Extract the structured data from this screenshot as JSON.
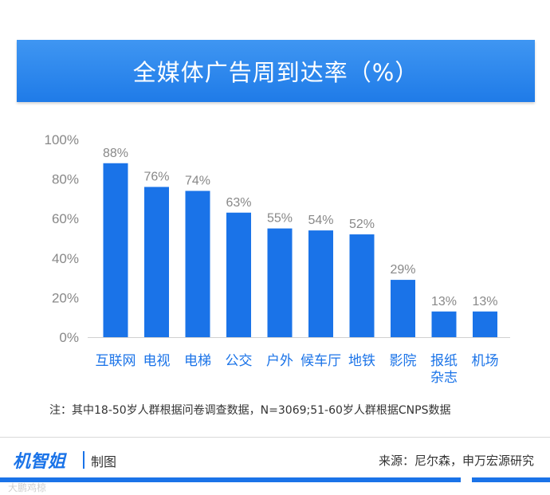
{
  "chart_data": {
    "type": "bar",
    "title": "全媒体广告周到达率（%）",
    "categories": [
      "互联网",
      "电视",
      "电梯",
      "公交",
      "户外",
      "候车厅",
      "地铁",
      "影院",
      "报纸杂志",
      "机场"
    ],
    "category_lines": [
      [
        "互联网"
      ],
      [
        "电视"
      ],
      [
        "电梯"
      ],
      [
        "公交"
      ],
      [
        "户外"
      ],
      [
        "候车厅"
      ],
      [
        "地铁"
      ],
      [
        "影院"
      ],
      [
        "报纸",
        "杂志"
      ],
      [
        "机场"
      ]
    ],
    "values": [
      88,
      76,
      74,
      63,
      55,
      54,
      52,
      29,
      13,
      13
    ],
    "value_labels": [
      "88%",
      "76%",
      "74%",
      "63%",
      "55%",
      "54%",
      "52%",
      "29%",
      "13%",
      "13%"
    ],
    "ylim": [
      0,
      100
    ],
    "yticks": [
      0,
      20,
      40,
      60,
      80,
      100
    ],
    "ytick_labels": [
      "0%",
      "20%",
      "40%",
      "60%",
      "80%",
      "100%"
    ],
    "xlabel": "",
    "ylabel": "",
    "grid": false,
    "bar_color": "#1a73e8",
    "label_color": "#888888",
    "category_color": "#1a73e8"
  },
  "note": "注：其中18-50岁人群根据问卷调查数据，N=3069;51-60岁人群根据CNPS数据",
  "footer": {
    "logo": "机智姐",
    "made_by": "制图",
    "source": "来源：尼尔森，申万宏源研究",
    "watermark": "大鹏鸡椋"
  }
}
